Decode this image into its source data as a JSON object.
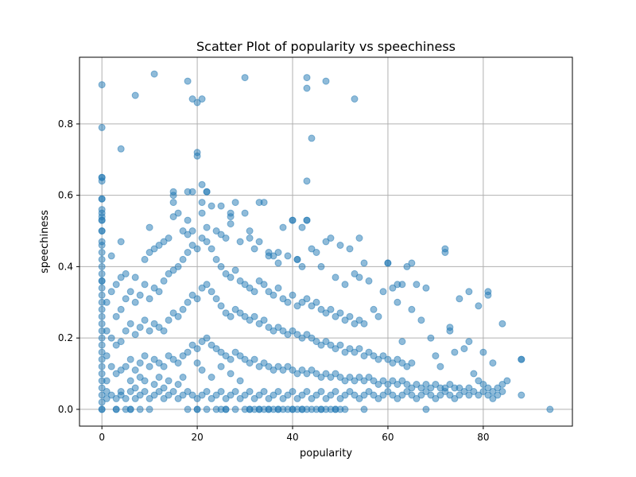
{
  "chart_data": {
    "type": "scatter",
    "title": "Scatter Plot of popularity vs speechiness",
    "xlabel": "popularity",
    "ylabel": "speechiness",
    "xlim": [
      -4.7,
      98.7
    ],
    "ylim": [
      -0.047,
      0.987
    ],
    "xticks": [
      0,
      20,
      40,
      60,
      80
    ],
    "xtick_labels": [
      "0",
      "20",
      "40",
      "60",
      "80"
    ],
    "yticks": [
      0.0,
      0.2,
      0.4,
      0.6,
      0.8
    ],
    "ytick_labels": [
      "0.0",
      "0.2",
      "0.4",
      "0.6",
      "0.8"
    ],
    "grid": true,
    "legend": "none",
    "color": "#1f77b4",
    "marker_alpha": 0.5,
    "series": [
      {
        "x": [
          0,
          0,
          0,
          0,
          0,
          0,
          0,
          0,
          0,
          0,
          0,
          0,
          0,
          0,
          0,
          0,
          0,
          0,
          0,
          0,
          0,
          0,
          0,
          0,
          0,
          0,
          0,
          0,
          0,
          0,
          1,
          1,
          1,
          1,
          1,
          1,
          2,
          2,
          2,
          2,
          2,
          3,
          3,
          3,
          3,
          3,
          3,
          4,
          4,
          4,
          4,
          4,
          4,
          4,
          5,
          5,
          5,
          5,
          5,
          5,
          6,
          6,
          6,
          6,
          6,
          6,
          7,
          7,
          7,
          7,
          7,
          7,
          8,
          8,
          8,
          8,
          8,
          8,
          9,
          9,
          9,
          9,
          9,
          9,
          10,
          10,
          10,
          10,
          10,
          10,
          11,
          11,
          11,
          11,
          11,
          11,
          12,
          12,
          12,
          12,
          12,
          12,
          13,
          13,
          13,
          13,
          13,
          13,
          14,
          14,
          14,
          14,
          14,
          14,
          15,
          15,
          15,
          15,
          15,
          15,
          16,
          16,
          16,
          16,
          16,
          16,
          17,
          17,
          17,
          17,
          17,
          17,
          18,
          18,
          18,
          18,
          18,
          18,
          19,
          19,
          19,
          19,
          19,
          19,
          20,
          20,
          20,
          20,
          20,
          20,
          21,
          21,
          21,
          21,
          21,
          21,
          21,
          22,
          22,
          22,
          22,
          22,
          22,
          22,
          23,
          23,
          23,
          23,
          23,
          23,
          24,
          24,
          24,
          24,
          24,
          24,
          25,
          25,
          25,
          25,
          25,
          25,
          26,
          26,
          26,
          26,
          26,
          26,
          27,
          27,
          27,
          27,
          27,
          27,
          28,
          28,
          28,
          28,
          28,
          28,
          29,
          29,
          29,
          29,
          29,
          29,
          30,
          30,
          30,
          30,
          30,
          30,
          31,
          31,
          31,
          31,
          31,
          31,
          32,
          32,
          32,
          32,
          32,
          32,
          33,
          33,
          33,
          33,
          33,
          33,
          34,
          34,
          34,
          34,
          34,
          34,
          35,
          35,
          35,
          35,
          35,
          35,
          36,
          36,
          36,
          36,
          36,
          36,
          37,
          37,
          37,
          37,
          37,
          37,
          38,
          38,
          38,
          38,
          38,
          38,
          39,
          39,
          39,
          39,
          39,
          39,
          40,
          40,
          40,
          40,
          40,
          40,
          41,
          41,
          41,
          41,
          41,
          41,
          42,
          42,
          42,
          42,
          42,
          42,
          43,
          43,
          43,
          43,
          43,
          43,
          44,
          44,
          44,
          44,
          44,
          44,
          45,
          45,
          45,
          45,
          45,
          45,
          46,
          46,
          46,
          46,
          46,
          46,
          47,
          47,
          47,
          47,
          47,
          47,
          48,
          48,
          48,
          48,
          48,
          48,
          49,
          49,
          49,
          49,
          49,
          49,
          50,
          50,
          50,
          50,
          50,
          50,
          51,
          51,
          51,
          51,
          51,
          52,
          52,
          52,
          52,
          52,
          53,
          53,
          53,
          53,
          53,
          54,
          54,
          54,
          54,
          54,
          55,
          55,
          55,
          55,
          55,
          56,
          56,
          56,
          56,
          57,
          57,
          57,
          57,
          58,
          58,
          58,
          58,
          59,
          59,
          59,
          59,
          60,
          60,
          60,
          60,
          61,
          61,
          61,
          61,
          62,
          62,
          62,
          62,
          63,
          63,
          63,
          63,
          64,
          64,
          64,
          64,
          65,
          65,
          65,
          65,
          66,
          66,
          66,
          67,
          67,
          67,
          68,
          68,
          68,
          69,
          69,
          69,
          70,
          70,
          70,
          71,
          71,
          71,
          72,
          72,
          72,
          73,
          73,
          73,
          74,
          74,
          74,
          75,
          75,
          75,
          76,
          76,
          77,
          77,
          77,
          78,
          78,
          79,
          79,
          80,
          80,
          80,
          81,
          81,
          81,
          82,
          82,
          82,
          83,
          83,
          84,
          84,
          85,
          88,
          88,
          94,
          0,
          0,
          0,
          0,
          0,
          0,
          0,
          0,
          0,
          0,
          7,
          11,
          18,
          19,
          20,
          21,
          30,
          43,
          43,
          47,
          53,
          44,
          4,
          20,
          20,
          43,
          15,
          18,
          21,
          22,
          15,
          18,
          25,
          27,
          33,
          40,
          42,
          43,
          72,
          77,
          81,
          60,
          62,
          65,
          79,
          84,
          88,
          3,
          6,
          10,
          20,
          25,
          26,
          31,
          33,
          35,
          37,
          40,
          42,
          46,
          49,
          51,
          55,
          0,
          27,
          31,
          35,
          37,
          41,
          54,
          63,
          68,
          73
        ],
        "y": [
          0.0,
          0.02,
          0.04,
          0.06,
          0.08,
          0.1,
          0.12,
          0.14,
          0.16,
          0.18,
          0.2,
          0.22,
          0.24,
          0.26,
          0.28,
          0.3,
          0.32,
          0.34,
          0.36,
          0.38,
          0.4,
          0.42,
          0.44,
          0.46,
          0.5,
          0.53,
          0.55,
          0.59,
          0.65,
          0.0,
          0.03,
          0.08,
          0.15,
          0.22,
          0.3,
          0.05,
          0.04,
          0.12,
          0.2,
          0.33,
          0.43,
          0.03,
          0.1,
          0.18,
          0.26,
          0.35,
          0.0,
          0.04,
          0.11,
          0.19,
          0.28,
          0.37,
          0.47,
          0.05,
          0.03,
          0.12,
          0.22,
          0.31,
          0.38,
          0.0,
          0.05,
          0.14,
          0.24,
          0.33,
          0.08,
          0.0,
          0.03,
          0.11,
          0.21,
          0.3,
          0.37,
          0.06,
          0.04,
          0.13,
          0.23,
          0.32,
          0.09,
          0.0,
          0.05,
          0.15,
          0.25,
          0.35,
          0.42,
          0.08,
          0.03,
          0.12,
          0.22,
          0.31,
          0.44,
          0.51,
          0.04,
          0.14,
          0.24,
          0.34,
          0.45,
          0.07,
          0.05,
          0.13,
          0.23,
          0.33,
          0.46,
          0.09,
          0.03,
          0.12,
          0.22,
          0.36,
          0.47,
          0.06,
          0.04,
          0.15,
          0.25,
          0.38,
          0.48,
          0.08,
          0.05,
          0.14,
          0.27,
          0.39,
          0.58,
          0.61,
          0.03,
          0.13,
          0.26,
          0.4,
          0.55,
          0.07,
          0.04,
          0.15,
          0.28,
          0.42,
          0.5,
          0.09,
          0.05,
          0.16,
          0.3,
          0.44,
          0.49,
          0.0,
          0.04,
          0.18,
          0.32,
          0.46,
          0.5,
          0.61,
          0.03,
          0.17,
          0.31,
          0.45,
          0.0,
          0.13,
          0.04,
          0.19,
          0.34,
          0.48,
          0.55,
          0.63,
          0.11,
          0.05,
          0.2,
          0.35,
          0.47,
          0.51,
          0.61,
          0.0,
          0.03,
          0.18,
          0.33,
          0.45,
          0.57,
          0.09,
          0.04,
          0.17,
          0.31,
          0.42,
          0.5,
          0.0,
          0.05,
          0.16,
          0.29,
          0.4,
          0.49,
          0.12,
          0.03,
          0.15,
          0.27,
          0.38,
          0.48,
          0.0,
          0.04,
          0.14,
          0.26,
          0.37,
          0.54,
          0.1,
          0.05,
          0.16,
          0.28,
          0.39,
          0.58,
          0.0,
          0.03,
          0.15,
          0.27,
          0.36,
          0.47,
          0.08,
          0.04,
          0.14,
          0.26,
          0.35,
          0.55,
          0.0,
          0.05,
          0.13,
          0.25,
          0.34,
          0.5,
          0.0,
          0.03,
          0.14,
          0.26,
          0.33,
          0.45,
          0.0,
          0.04,
          0.12,
          0.24,
          0.36,
          0.47,
          0.0,
          0.05,
          0.13,
          0.25,
          0.35,
          0.58,
          0.0,
          0.03,
          0.12,
          0.23,
          0.33,
          0.44,
          0.0,
          0.04,
          0.11,
          0.22,
          0.32,
          0.43,
          0.0,
          0.05,
          0.12,
          0.23,
          0.34,
          0.41,
          0.0,
          0.03,
          0.11,
          0.22,
          0.31,
          0.51,
          0.0,
          0.04,
          0.12,
          0.21,
          0.3,
          0.43,
          0.0,
          0.05,
          0.11,
          0.22,
          0.32,
          0.53,
          0.0,
          0.03,
          0.1,
          0.21,
          0.29,
          0.42,
          0.0,
          0.04,
          0.11,
          0.2,
          0.3,
          0.4,
          0.0,
          0.05,
          0.1,
          0.21,
          0.31,
          0.53,
          0.0,
          0.03,
          0.11,
          0.2,
          0.29,
          0.45,
          0.0,
          0.04,
          0.1,
          0.19,
          0.3,
          0.44,
          0.0,
          0.05,
          0.09,
          0.18,
          0.28,
          0.4,
          0.0,
          0.03,
          0.1,
          0.19,
          0.27,
          0.47,
          0.0,
          0.04,
          0.09,
          0.18,
          0.28,
          0.48,
          0.0,
          0.05,
          0.1,
          0.17,
          0.26,
          0.37,
          0.0,
          0.03,
          0.09,
          0.18,
          0.27,
          0.46,
          0.0,
          0.04,
          0.08,
          0.16,
          0.25,
          0.35,
          0.05,
          0.09,
          0.17,
          0.26,
          0.45,
          0.04,
          0.08,
          0.16,
          0.24,
          0.38,
          0.03,
          0.09,
          0.17,
          0.25,
          0.48,
          0.04,
          0.08,
          0.15,
          0.24,
          0.41,
          0.05,
          0.09,
          0.16,
          0.36,
          0.04,
          0.08,
          0.15,
          0.28,
          0.03,
          0.07,
          0.14,
          0.26,
          0.04,
          0.08,
          0.15,
          0.33,
          0.05,
          0.07,
          0.14,
          0.41,
          0.04,
          0.08,
          0.13,
          0.34,
          0.03,
          0.07,
          0.14,
          0.3,
          0.04,
          0.08,
          0.13,
          0.19,
          0.05,
          0.07,
          0.12,
          0.4,
          0.04,
          0.06,
          0.13,
          0.28,
          0.03,
          0.07,
          0.35,
          0.04,
          0.06,
          0.25,
          0.05,
          0.07,
          0.0,
          0.04,
          0.06,
          0.2,
          0.03,
          0.07,
          0.15,
          0.04,
          0.06,
          0.12,
          0.05,
          0.06,
          0.44,
          0.04,
          0.07,
          0.22,
          0.03,
          0.06,
          0.16,
          0.04,
          0.06,
          0.31,
          0.05,
          0.17,
          0.04,
          0.06,
          0.19,
          0.05,
          0.1,
          0.04,
          0.08,
          0.05,
          0.07,
          0.16,
          0.04,
          0.06,
          0.32,
          0.03,
          0.05,
          0.13,
          0.04,
          0.06,
          0.05,
          0.07,
          0.08,
          0.04,
          0.14,
          0.0,
          0.91,
          0.79,
          0.65,
          0.64,
          0.59,
          0.56,
          0.54,
          0.53,
          0.5,
          0.47,
          0.88,
          0.94,
          0.92,
          0.87,
          0.86,
          0.87,
          0.93,
          0.93,
          0.9,
          0.92,
          0.87,
          0.76,
          0.73,
          0.72,
          0.71,
          0.64,
          0.6,
          0.61,
          0.58,
          0.61,
          0.54,
          0.53,
          0.57,
          0.55,
          0.58,
          0.53,
          0.51,
          0.53,
          0.45,
          0.33,
          0.33,
          0.41,
          0.35,
          0.41,
          0.29,
          0.24,
          0.14,
          0.0,
          0.0,
          0.0,
          0.0,
          0.0,
          0.0,
          0.0,
          0.0,
          0.0,
          0.0,
          0.0,
          0.0,
          0.0,
          0.0,
          0.0,
          0.0,
          0.36,
          0.52,
          0.48,
          0.43,
          0.44,
          0.42,
          0.37,
          0.35,
          0.34,
          0.23
        ]
      }
    ]
  }
}
